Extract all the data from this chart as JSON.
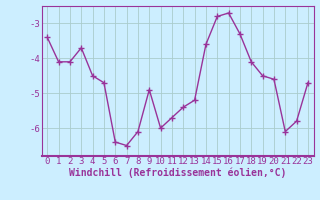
{
  "x": [
    0,
    1,
    2,
    3,
    4,
    5,
    6,
    7,
    8,
    9,
    10,
    11,
    12,
    13,
    14,
    15,
    16,
    17,
    18,
    19,
    20,
    21,
    22,
    23
  ],
  "y": [
    -3.4,
    -4.1,
    -4.1,
    -3.7,
    -4.5,
    -4.7,
    -6.4,
    -6.5,
    -6.1,
    -4.9,
    -6.0,
    -5.7,
    -5.4,
    -5.2,
    -3.6,
    -2.8,
    -2.7,
    -3.3,
    -4.1,
    -4.5,
    -4.6,
    -6.1,
    -5.8,
    -4.7
  ],
  "line_color": "#993399",
  "marker": "+",
  "marker_size": 4,
  "linewidth": 1.0,
  "xlabel": "Windchill (Refroidissement éolien,°C)",
  "xlim": [
    -0.5,
    23.5
  ],
  "ylim": [
    -6.8,
    -2.5
  ],
  "yticks": [
    -6,
    -5,
    -4,
    -3
  ],
  "xticks": [
    0,
    1,
    2,
    3,
    4,
    5,
    6,
    7,
    8,
    9,
    10,
    11,
    12,
    13,
    14,
    15,
    16,
    17,
    18,
    19,
    20,
    21,
    22,
    23
  ],
  "bg_color": "#cceeff",
  "grid_color": "#aacccc",
  "xlabel_fontsize": 7,
  "tick_fontsize": 6.5,
  "xlabel_color": "#993399",
  "tick_color": "#993399",
  "spine_color": "#993399",
  "axis_spine_color": "#993399"
}
